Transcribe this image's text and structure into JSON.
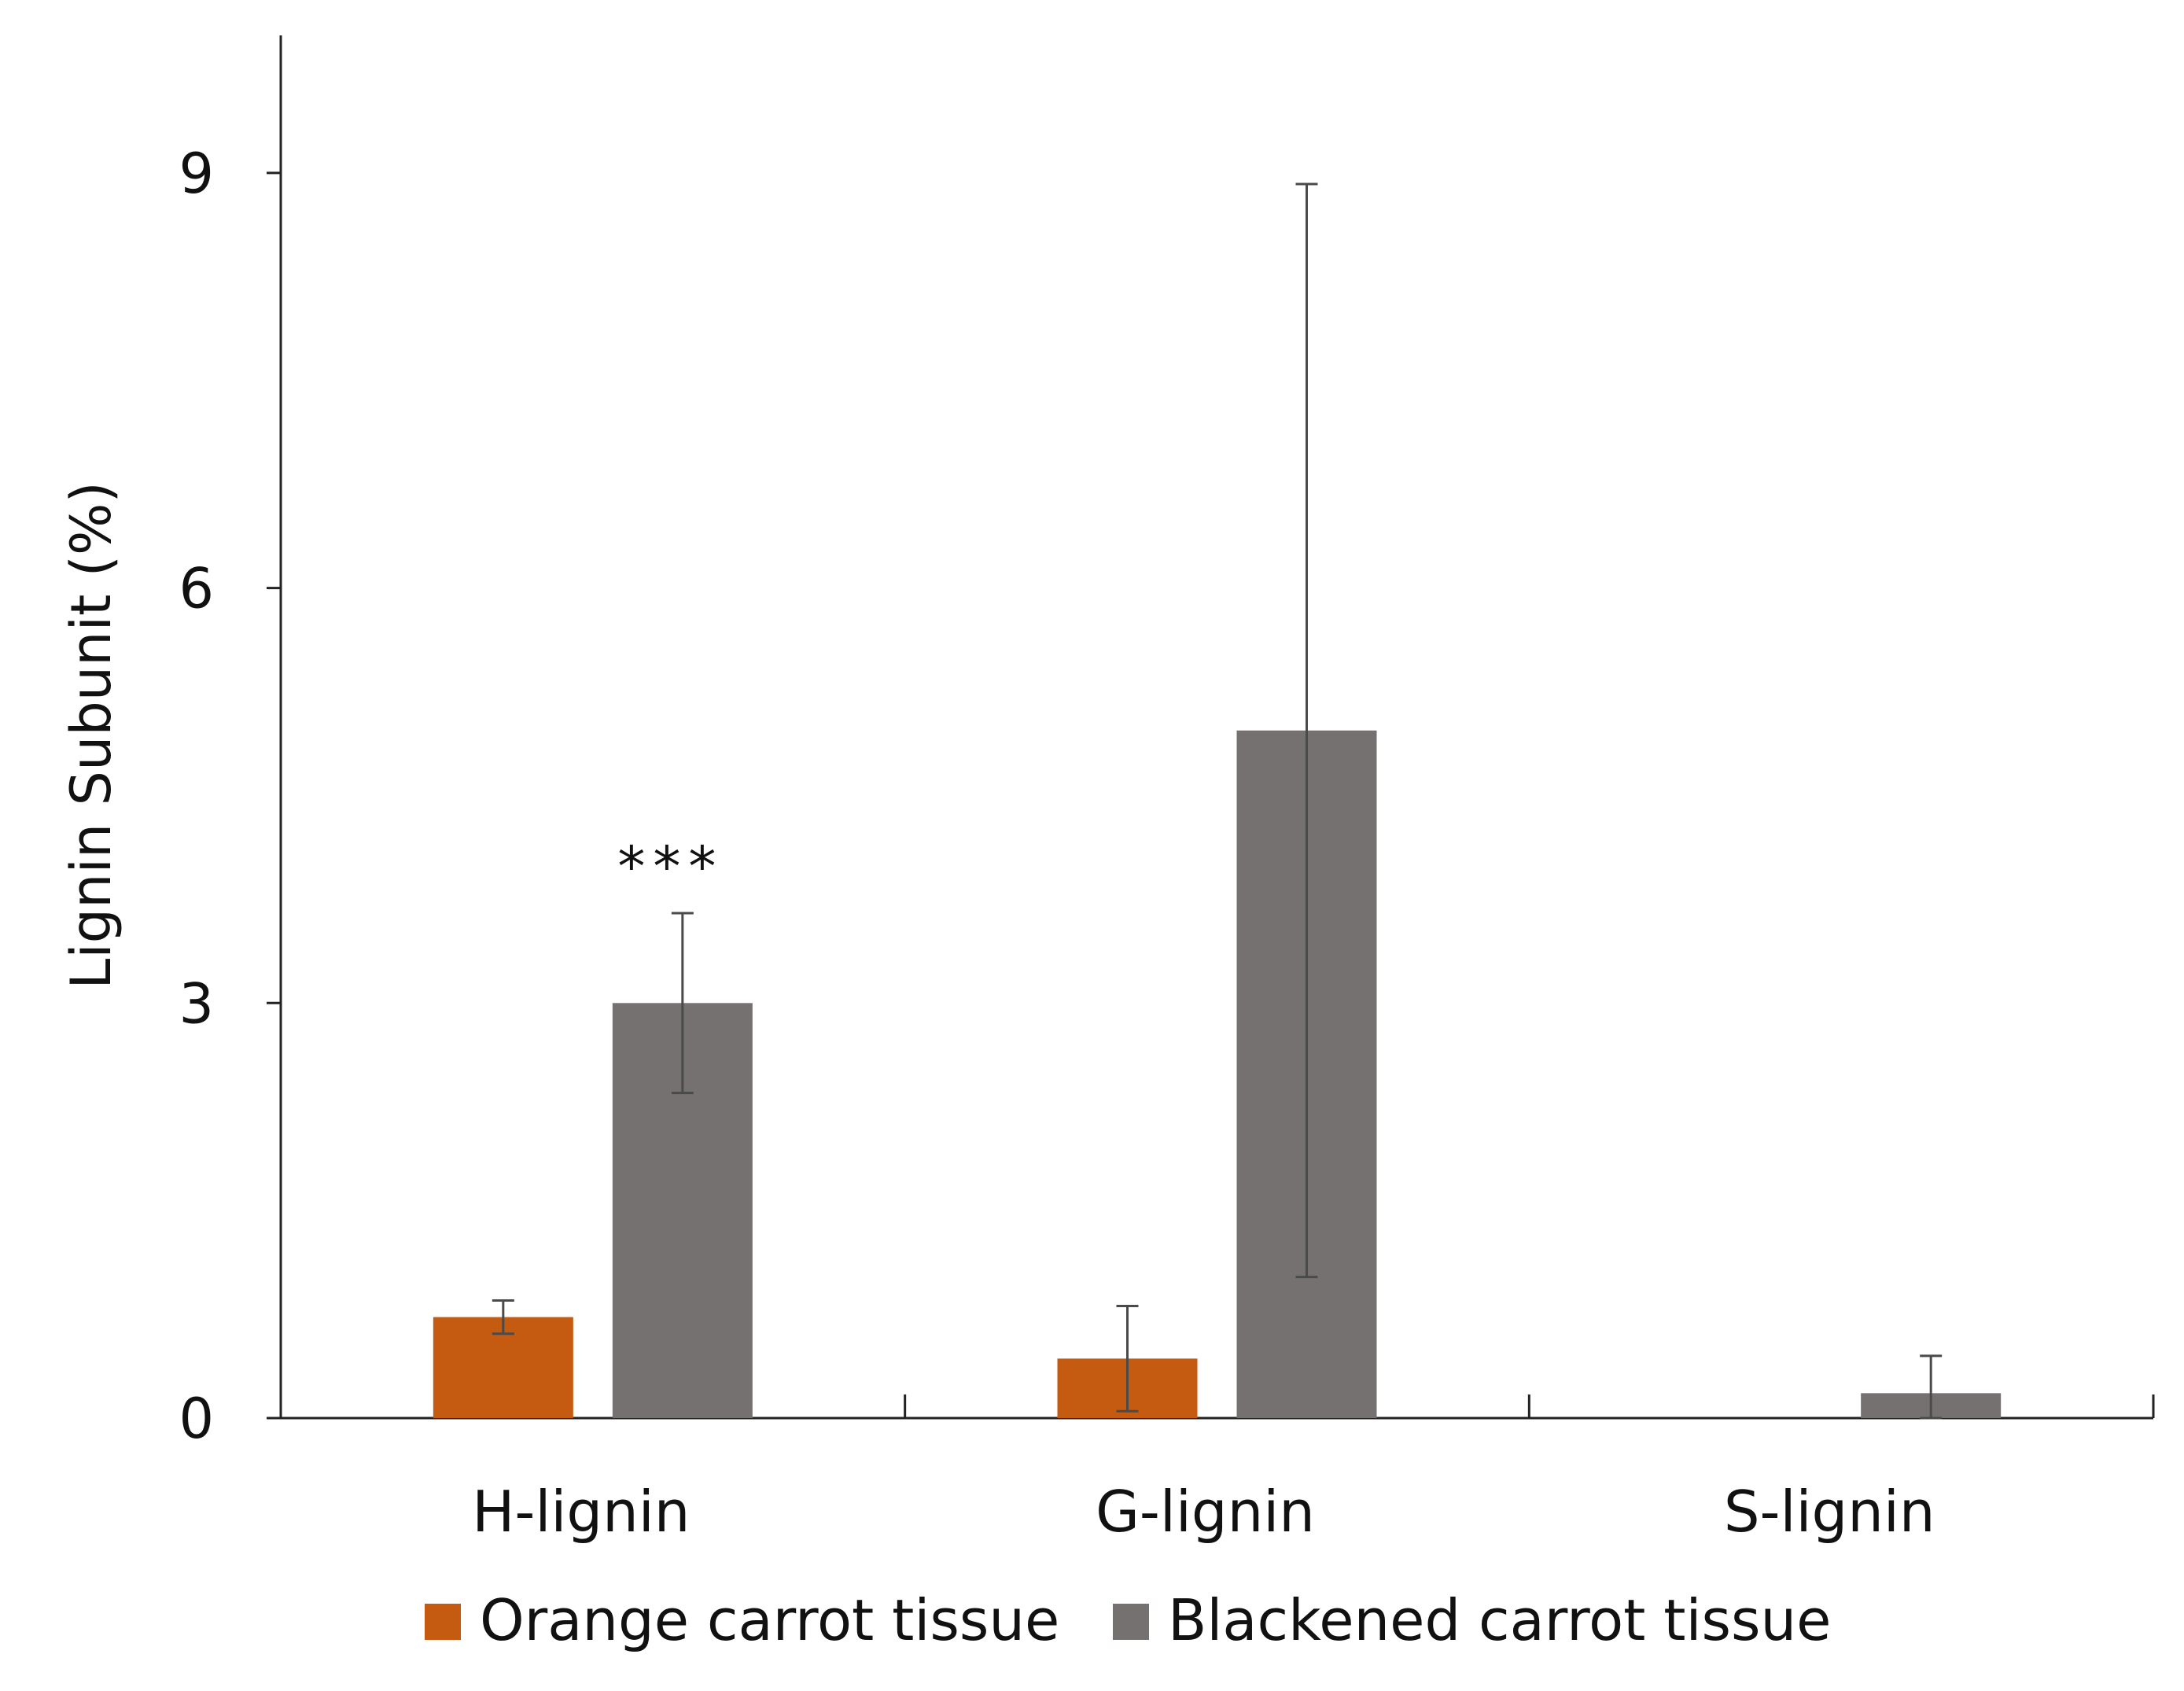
{
  "chart_data": {
    "type": "bar",
    "categories": [
      "H-lignin",
      "G-lignin",
      "S-lignin"
    ],
    "series": [
      {
        "name": "Orange carrot tissue",
        "color": "#C55A11",
        "values": [
          0.73,
          0.43,
          0
        ],
        "errors": [
          0.12,
          0.38,
          0
        ]
      },
      {
        "name": "Blackened carrot tissue",
        "color": "#767171",
        "values": [
          3.0,
          4.97,
          0.18
        ],
        "errors": [
          0.65,
          3.95,
          0.27
        ]
      }
    ],
    "ylabel": "Lignin Subunit (%)",
    "xlabel": "",
    "ylim": [
      0,
      10
    ],
    "yticks": [
      0,
      3,
      6,
      9
    ],
    "annotations": [
      {
        "category": "H-lignin",
        "series": "Blackened carrot tissue",
        "text": "***"
      }
    ],
    "legend_position": "bottom",
    "grid": false
  }
}
